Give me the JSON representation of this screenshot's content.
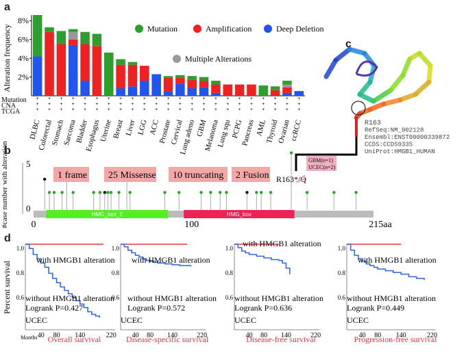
{
  "panels": {
    "a": "a",
    "b": "b",
    "c": "c",
    "d": "d"
  },
  "chart_data": [
    {
      "type": "bar",
      "ylabel": "Alteration frequency",
      "yticks": [
        "2%",
        "4%",
        "6%",
        "8%"
      ],
      "ylim": [
        0,
        8.6
      ],
      "legend": [
        {
          "name": "Mutation",
          "color": "#2e9e2e"
        },
        {
          "name": "Amplification",
          "color": "#ee2222"
        },
        {
          "name": "Deep Deletion",
          "color": "#2255ee"
        },
        {
          "name": "Multiple Alterations",
          "color": "#999999"
        }
      ],
      "categories": [
        "DLBC",
        "Colorectal",
        "Stomach",
        "Sarcoma",
        "Bladder",
        "Esophagus",
        "Uterine",
        "Breast",
        "Liver",
        "LGG",
        "ACC",
        "Prostate",
        "Cervical",
        "Lung adeno",
        "GBM",
        "Melanoma",
        "Lung squ",
        "PCPG",
        "Pancreas",
        "AML",
        "Thyroid",
        "Ovarian",
        "ccRCC"
      ],
      "series": [
        {
          "name": "Deep Deletion",
          "values": [
            4.2,
            0,
            0,
            5.4,
            1.6,
            0,
            0,
            0.8,
            1.0,
            1.6,
            2.3,
            0.5,
            1.3,
            0.8,
            0.9,
            0.3,
            0,
            0,
            0,
            0,
            0,
            0.3,
            0.5
          ]
        },
        {
          "name": "Amplification",
          "values": [
            0,
            6.8,
            5.5,
            0.6,
            3.9,
            5.3,
            0,
            2.5,
            2.3,
            1.6,
            0,
            1.4,
            0.6,
            0.9,
            0.7,
            0.9,
            1.2,
            1.2,
            1.2,
            0,
            0.6,
            0.6,
            0
          ]
        },
        {
          "name": "Multiple Alterations",
          "values": [
            0,
            0,
            0,
            0.8,
            0,
            0,
            0,
            0,
            0,
            0,
            0,
            0,
            0,
            0,
            0,
            0,
            0,
            0,
            0,
            0,
            0,
            0.3,
            0
          ]
        },
        {
          "name": "Mutation",
          "values": [
            4.4,
            0.5,
            1.4,
            0.3,
            1.3,
            1.3,
            4.6,
            0.6,
            0.3,
            0,
            0,
            0.2,
            0.3,
            0.4,
            0.4,
            0.4,
            0,
            0,
            0,
            1.1,
            0.4,
            0.4,
            0
          ]
        }
      ],
      "row_labels": [
        "Mutation",
        "CNA",
        "TCGA"
      ]
    },
    {
      "type": "scatter",
      "ylabel": "#case number with alteration",
      "ymax_label": "5",
      "ymin_label": "0",
      "xticks": [
        "0",
        "100"
      ],
      "xmax_label": "215aa",
      "domains": [
        {
          "name": "HMG_box_2",
          "start": 8,
          "end": 85,
          "color": "#55ee22"
        },
        {
          "name": "HMG_box",
          "start": 95,
          "end": 165,
          "color": "#ee2255"
        }
      ],
      "summary": [
        "1 frame",
        "25 Missense",
        "10 truncating",
        "2 Fusion"
      ],
      "hotspot": "R163*/Q",
      "hotspot_box": [
        "GBM(n=1)",
        "UCEC(n=2)"
      ],
      "lollipops": [
        {
          "pos": 7,
          "n": 1.4,
          "color": "#111111"
        },
        {
          "pos": 10,
          "n": 0.8,
          "color": "#2e9e2e"
        },
        {
          "pos": 13,
          "n": 0.8,
          "color": "#2e9e2e"
        },
        {
          "pos": 18,
          "n": 0.8,
          "color": "#2e9e2e"
        },
        {
          "pos": 21,
          "n": 1.4,
          "color": "#111111"
        },
        {
          "pos": 25,
          "n": 0.8,
          "color": "#2e9e2e"
        },
        {
          "pos": 38,
          "n": 0.8,
          "color": "#2e9e2e"
        },
        {
          "pos": 42,
          "n": 0.8,
          "color": "#2e9e2e"
        },
        {
          "pos": 45,
          "n": 0.8,
          "color": "#111111"
        },
        {
          "pos": 47,
          "n": 0.8,
          "color": "#2e9e2e"
        },
        {
          "pos": 49,
          "n": 0.8,
          "color": "#2e9e2e"
        },
        {
          "pos": 54,
          "n": 0.8,
          "color": "#2e9e2e"
        },
        {
          "pos": 59,
          "n": 1.4,
          "color": "#2e9e2e"
        },
        {
          "pos": 61,
          "n": 0.8,
          "color": "#2e9e2e"
        },
        {
          "pos": 83,
          "n": 0.8,
          "color": "#2e9e2e"
        },
        {
          "pos": 92,
          "n": 0.8,
          "color": "#2e9e2e"
        },
        {
          "pos": 106,
          "n": 0.8,
          "color": "#2e9e2e"
        },
        {
          "pos": 112,
          "n": 0.8,
          "color": "#2e9e2e"
        },
        {
          "pos": 118,
          "n": 0.8,
          "color": "#2e9e2e"
        },
        {
          "pos": 122,
          "n": 0.8,
          "color": "#2e9e2e"
        },
        {
          "pos": 135,
          "n": 0.8,
          "color": "#111111"
        },
        {
          "pos": 141,
          "n": 0.8,
          "color": "#2e9e2e"
        },
        {
          "pos": 144,
          "n": 0.8,
          "color": "#2e9e2e"
        },
        {
          "pos": 150,
          "n": 0.8,
          "color": "#2e9e2e"
        },
        {
          "pos": 163,
          "n": 2.6,
          "color": "#2e9e2e"
        },
        {
          "pos": 173,
          "n": 0.8,
          "color": "#2e9e2e"
        },
        {
          "pos": 190,
          "n": 0.8,
          "color": "#2e9e2e"
        },
        {
          "pos": 204,
          "n": 0.8,
          "color": "#2e9e2e"
        }
      ]
    },
    {
      "type": "line",
      "ylabel": "Percent survival",
      "xlabel": "Months",
      "plots": [
        {
          "title": "Overall survival",
          "xticks": [
            "40",
            "80",
            "140",
            "220"
          ],
          "with": "with HMGB1 alteration",
          "without": "without HMGB1 alteration",
          "logrank": "Logrank P=0.427",
          "cancer": "UCEC",
          "with_curve": [
            [
              0,
              1.0
            ],
            [
              200,
              1.0
            ]
          ],
          "without_curve": [
            [
              0,
              1.0
            ],
            [
              10,
              0.95
            ],
            [
              20,
              0.88
            ],
            [
              30,
              0.83
            ],
            [
              40,
              0.78
            ],
            [
              50,
              0.73
            ],
            [
              60,
              0.66
            ],
            [
              70,
              0.6
            ],
            [
              80,
              0.55
            ],
            [
              90,
              0.5
            ],
            [
              100,
              0.46
            ],
            [
              110,
              0.42
            ],
            [
              120,
              0.38
            ],
            [
              130,
              0.34
            ],
            [
              140,
              0.3
            ],
            [
              150,
              0.26
            ],
            [
              160,
              0.21
            ],
            [
              170,
              0.18
            ],
            [
              180,
              0.16
            ],
            [
              190,
              0.14
            ]
          ]
        },
        {
          "title": "Disease-specific survival",
          "xticks": [
            "40",
            "80",
            "140",
            "220"
          ],
          "with": "with HMGB1 alteration",
          "without": "without HMGB1 alteration",
          "logrank": "Logrank P=0.572",
          "cancer": "UCEC",
          "with_curve": [
            [
              0,
              1.0
            ],
            [
              180,
              1.0
            ]
          ],
          "without_curve": [
            [
              0,
              1.0
            ],
            [
              10,
              0.97
            ],
            [
              20,
              0.93
            ],
            [
              30,
              0.9
            ],
            [
              40,
              0.87
            ],
            [
              50,
              0.85
            ],
            [
              60,
              0.83
            ],
            [
              70,
              0.81
            ],
            [
              80,
              0.8
            ],
            [
              90,
              0.79
            ],
            [
              100,
              0.78
            ],
            [
              120,
              0.77
            ],
            [
              140,
              0.76
            ],
            [
              160,
              0.75
            ],
            [
              190,
              0.74
            ]
          ]
        },
        {
          "title": "Disease-free survival",
          "xticks": [
            "40",
            "80",
            "140",
            "220"
          ],
          "with": "with HMGB1 alteration",
          "without": "without HMGB1 alteration",
          "logrank": "Logrank P=0.636",
          "cancer": "UCEC",
          "with_curve": [
            [
              0,
              1.0
            ],
            [
              120,
              1.0
            ]
          ],
          "without_curve": [
            [
              0,
              1.0
            ],
            [
              10,
              0.96
            ],
            [
              20,
              0.92
            ],
            [
              30,
              0.9
            ],
            [
              40,
              0.88
            ],
            [
              60,
              0.86
            ],
            [
              80,
              0.84
            ],
            [
              100,
              0.82
            ],
            [
              120,
              0.81
            ],
            [
              130,
              0.78
            ],
            [
              140,
              0.72
            ],
            [
              150,
              0.65
            ]
          ]
        },
        {
          "title": "Progression-free survival",
          "xticks": [
            "40",
            "80",
            "140",
            "220"
          ],
          "with": "with HMGB1 alteration",
          "without": "without HMGB1 alteration",
          "logrank": "Logrank P=0.449",
          "cancer": "UCEC",
          "with_curve": [
            [
              0,
              1.0
            ],
            [
              140,
              1.0
            ]
          ],
          "without_curve": [
            [
              0,
              1.0
            ],
            [
              10,
              0.93
            ],
            [
              20,
              0.87
            ],
            [
              30,
              0.83
            ],
            [
              40,
              0.8
            ],
            [
              50,
              0.77
            ],
            [
              60,
              0.75
            ],
            [
              70,
              0.73
            ],
            [
              80,
              0.71
            ],
            [
              100,
              0.69
            ],
            [
              120,
              0.67
            ],
            [
              140,
              0.65
            ],
            [
              160,
              0.62
            ],
            [
              180,
              0.6
            ],
            [
              200,
              0.58
            ]
          ]
        }
      ]
    }
  ],
  "structure": {
    "residue": "R163",
    "info": [
      "R163",
      "RefSeq:NM_002128",
      "Ensembl:ENST00000339872",
      "CCDS:CCDS9335",
      "UniProt:HMGB1_HUMAN"
    ]
  }
}
